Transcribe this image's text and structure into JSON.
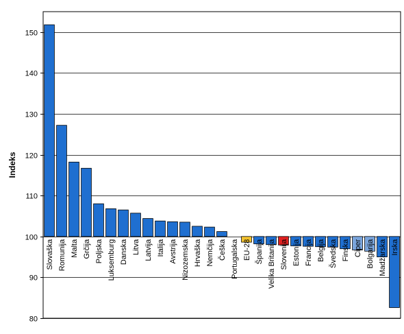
{
  "chart_data": {
    "type": "bar",
    "ylabel": "Indeks",
    "ylim": [
      80,
      155
    ],
    "yticks": [
      80,
      90,
      100,
      110,
      120,
      130,
      140,
      150
    ],
    "baseline": 100,
    "grid": true,
    "legend": "none",
    "colors": {
      "default": "#1F6FD0",
      "eu": "#F2C12E",
      "slovenia": "#E02020",
      "highlight": "#7AA5DC",
      "edge": "#000000",
      "grid": "#000000"
    },
    "categories": [
      "Slovaška",
      "Romunija",
      "Malta",
      "Grčija",
      "Poljska",
      "Luksemburg",
      "Danska",
      "Litva",
      "Latvija",
      "Italija",
      "Avstrija",
      "Nizozemska",
      "Hrvaška",
      "Nemčija",
      "Češka",
      "Portugalska",
      "EU-28",
      "Španija",
      "Velika Britanija",
      "Slovenija",
      "Estonija",
      "Francija",
      "Belgija",
      "Švedska",
      "Finska",
      "Ciper",
      "Bolgarija",
      "Madžarska",
      "Irska"
    ],
    "values": [
      151.8,
      127.2,
      118.2,
      116.7,
      108.0,
      106.8,
      106.5,
      105.7,
      104.4,
      103.8,
      103.6,
      103.5,
      102.5,
      102.3,
      101.2,
      100.0,
      98.6,
      98.2,
      98.0,
      97.9,
      97.7,
      97.6,
      97.5,
      97.4,
      97.0,
      96.7,
      96.4,
      95.0,
      82.6
    ],
    "colorKeys": [
      "default",
      "default",
      "default",
      "default",
      "default",
      "default",
      "default",
      "default",
      "default",
      "default",
      "default",
      "default",
      "default",
      "default",
      "default",
      "default",
      "eu",
      "default",
      "default",
      "slovenia",
      "default",
      "default",
      "default",
      "default",
      "default",
      "highlight",
      "highlight",
      "default",
      "default"
    ]
  }
}
